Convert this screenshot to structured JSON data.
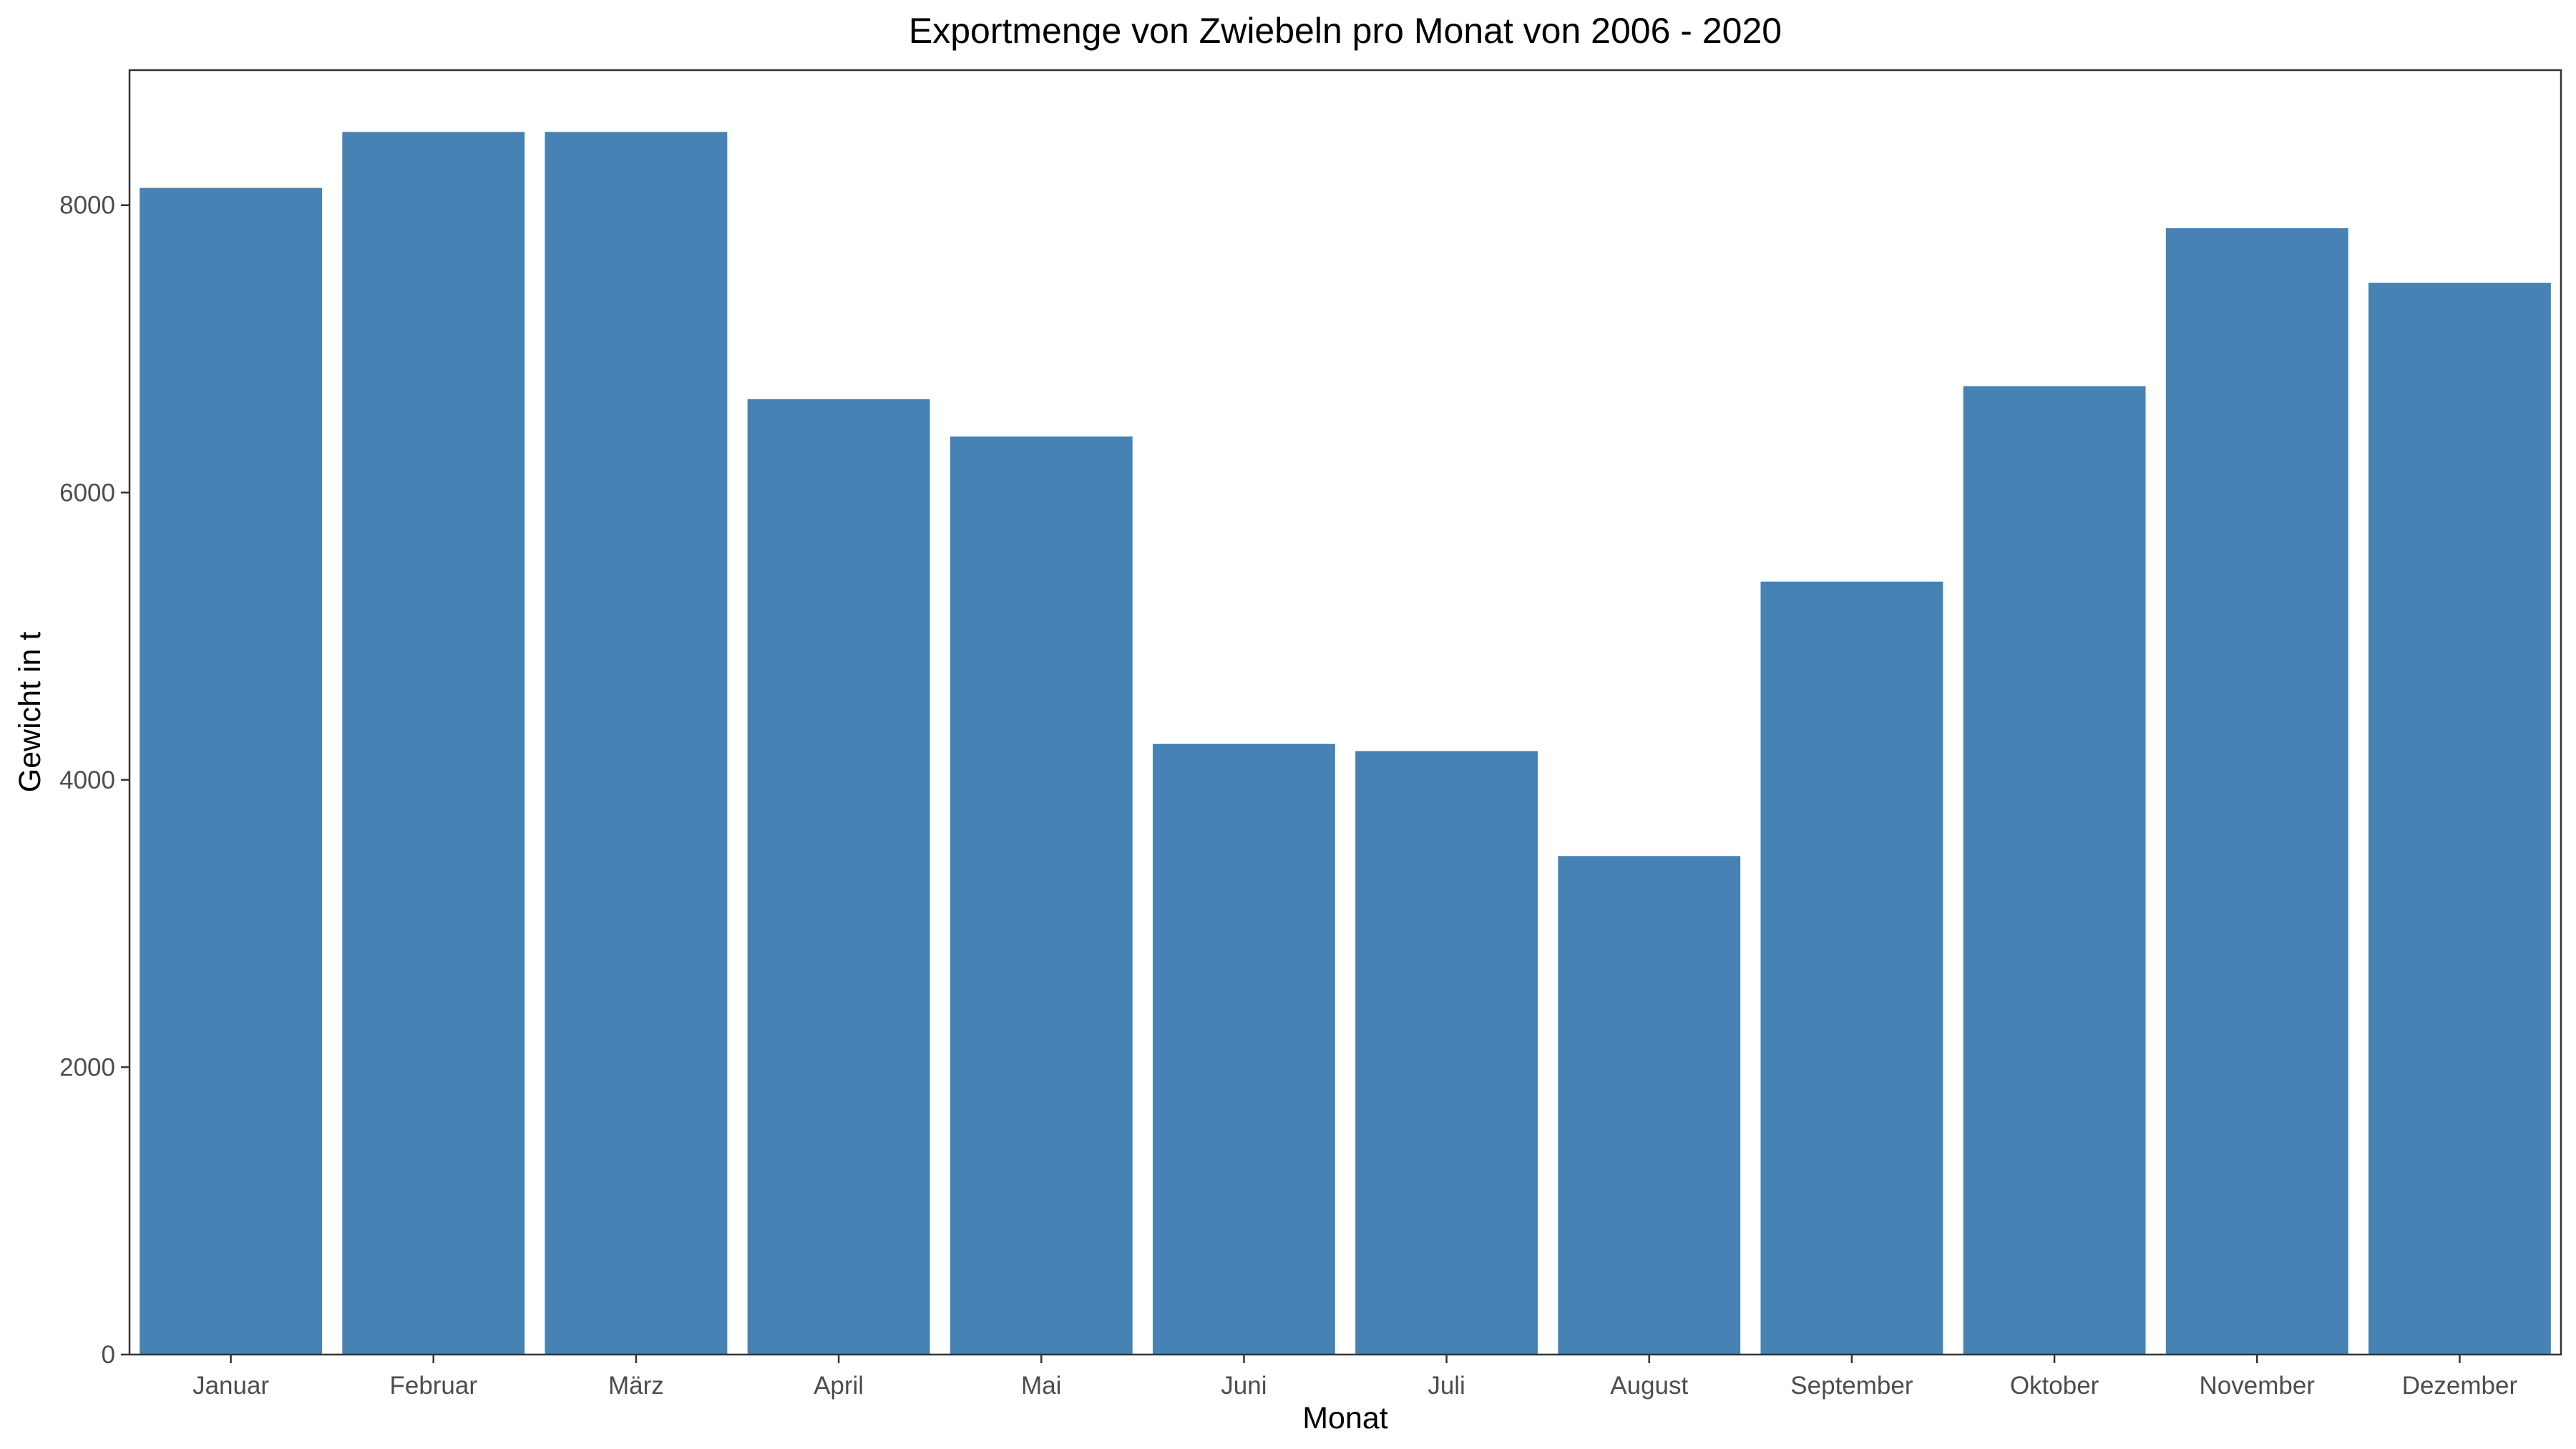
{
  "chart_data": {
    "type": "bar",
    "title": "Exportmenge von Zwiebeln pro Monat von 2006 - 2020",
    "xlabel": "Monat",
    "ylabel": "Gewicht in t",
    "categories": [
      "Januar",
      "Februar",
      "März",
      "April",
      "Mai",
      "Juni",
      "Juli",
      "August",
      "September",
      "Oktober",
      "November",
      "Dezember"
    ],
    "values": [
      8120,
      8510,
      8510,
      6650,
      6390,
      4250,
      4200,
      3470,
      5380,
      6740,
      7840,
      7460
    ],
    "ylim": [
      0,
      8940
    ],
    "yticks": [
      0,
      2000,
      4000,
      6000,
      8000
    ],
    "bar_color": "#4682B4",
    "grid": false,
    "legend": "none"
  }
}
